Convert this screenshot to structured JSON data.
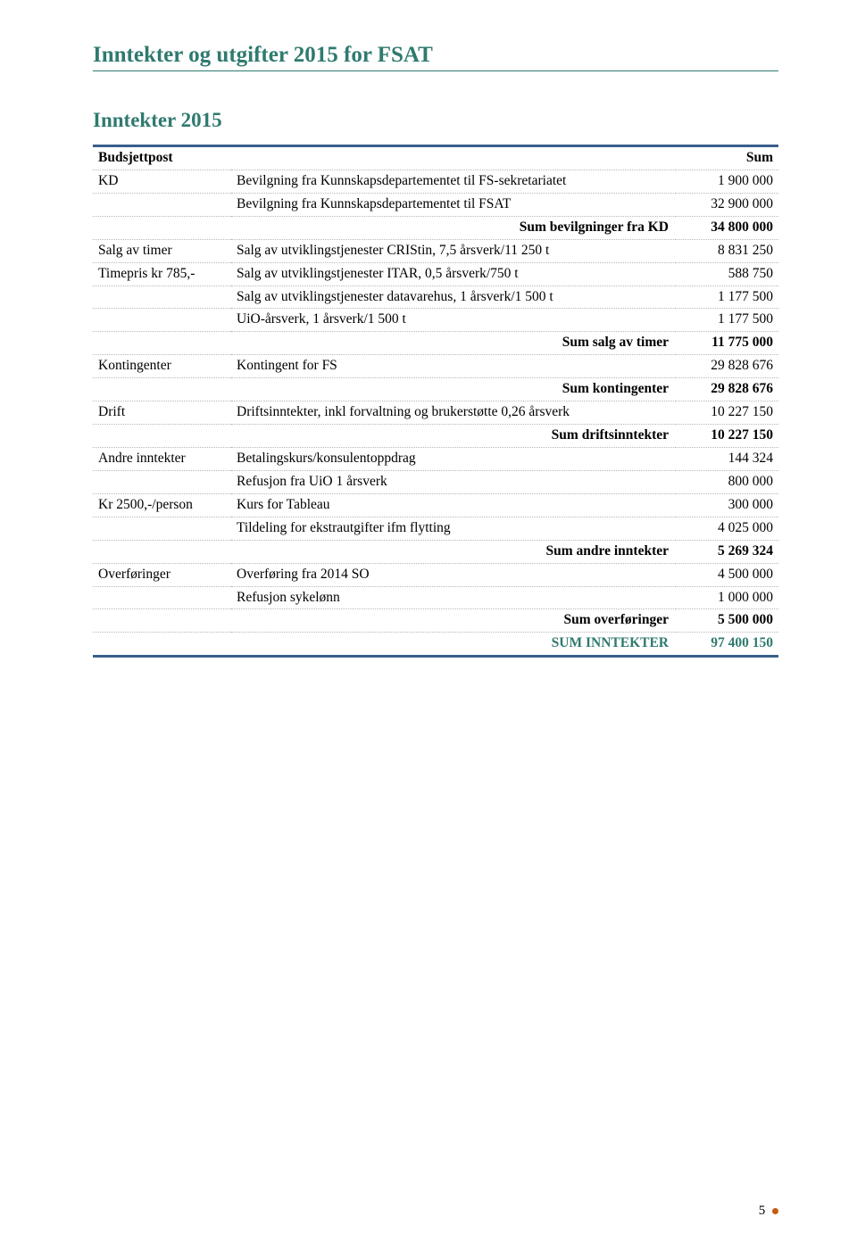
{
  "page_title": "Inntekter og utgifter 2015 for FSAT",
  "section_title": "Inntekter 2015",
  "columns": {
    "c1": "Budsjettpost",
    "c2": "",
    "c3": "Sum"
  },
  "rows": [
    {
      "c1": "KD",
      "c2": "Bevilgning fra Kunnskapsdepartementet til FS-sekretariatet",
      "c3": "1 900 000"
    },
    {
      "c1": "",
      "c2": "Bevilgning fra Kunnskapsdepartementet til FSAT",
      "c3": "32 900 000"
    },
    {
      "bold": true,
      "c1": "",
      "c2": "Sum bevilgninger fra KD",
      "c3": "34 800 000"
    },
    {
      "c1": "Salg av timer",
      "c2": "Salg av utviklingstjenester CRIStin, 7,5 årsverk/11 250 t",
      "c3": "8 831 250"
    },
    {
      "c1": "Timepris kr 785,-",
      "c2": "Salg av utviklingstjenester ITAR, 0,5 årsverk/750 t",
      "c3": "588 750"
    },
    {
      "c1": "",
      "c2": "Salg av utviklingstjenester datavarehus, 1 årsverk/1 500 t",
      "c3": "1 177 500"
    },
    {
      "c1": "",
      "c2": "UiO-årsverk, 1 årsverk/1 500 t",
      "c3": "1 177 500"
    },
    {
      "bold": true,
      "c1": "",
      "c2": "Sum salg av timer",
      "c3": "11 775 000"
    },
    {
      "c1": "Kontingenter",
      "c2": "Kontingent for FS",
      "c3": "29 828 676"
    },
    {
      "bold": true,
      "c1": "",
      "c2": "Sum kontingenter",
      "c3": "29 828 676"
    },
    {
      "c1": "Drift",
      "c2": "Driftsinntekter, inkl forvaltning og brukerstøtte 0,26 årsverk",
      "c3": "10 227 150"
    },
    {
      "bold": true,
      "c1": "",
      "c2": "Sum driftsinntekter",
      "c3": "10 227 150"
    },
    {
      "c1": "Andre inntekter",
      "c2": "Betalingskurs/konsulentoppdrag",
      "c3": "144 324"
    },
    {
      "c1": "",
      "c2": "Refusjon fra UiO 1 årsverk",
      "c3": "800 000"
    },
    {
      "c1": "Kr 2500,-/person",
      "c2": "Kurs for Tableau",
      "c3": "300 000"
    },
    {
      "c1": "",
      "c2": "Tildeling for ekstrautgifter ifm flytting",
      "c3": "4 025 000"
    },
    {
      "bold": true,
      "c1": "",
      "c2": "Sum andre inntekter",
      "c3": "5 269 324"
    },
    {
      "c1": "Overføringer",
      "c2": "Overføring fra 2014 SO",
      "c3": "4 500 000"
    },
    {
      "c1": "",
      "c2": "Refusjon sykelønn",
      "c3": "1 000 000"
    },
    {
      "bold": true,
      "c1": "",
      "c2": "Sum overføringer",
      "c3": "5 500 000"
    },
    {
      "grand": true,
      "c1": "",
      "c2": "SUM INNTEKTER",
      "c3": "97 400 150"
    }
  ],
  "footer": {
    "page_number": "5"
  },
  "colors": {
    "accent": "#2f7a6f",
    "table_border": "#3a5f8a",
    "dotted": "#b8b8b8",
    "footer_dot": "#c55a11",
    "background": "#ffffff",
    "text": "#000000"
  }
}
